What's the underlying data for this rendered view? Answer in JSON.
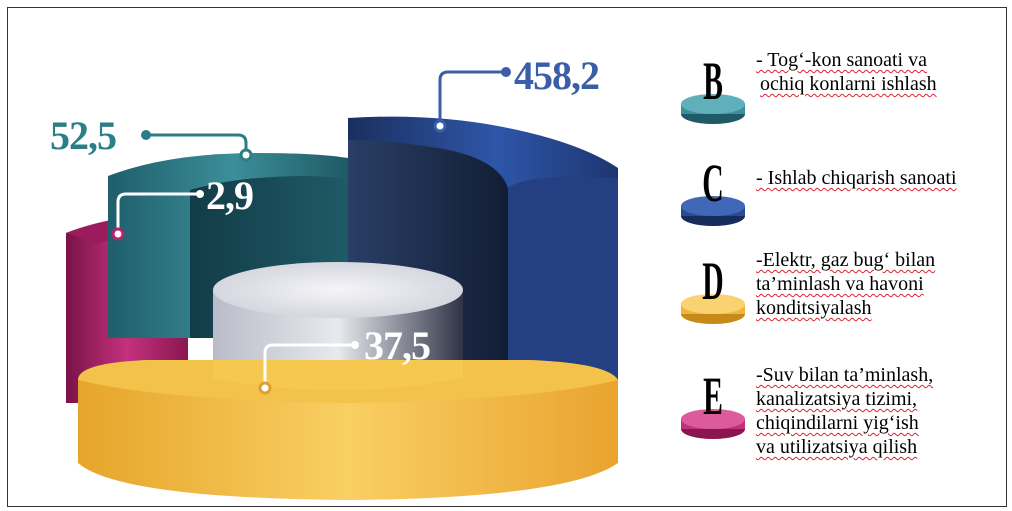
{
  "chart_data": {
    "type": "3d-ring",
    "values": [
      {
        "category": "B",
        "label": "52,5",
        "value": 52.5,
        "color": "#2e7e8a"
      },
      {
        "category": "C",
        "label": "458,2",
        "value": 458.2,
        "color": "#2e4f99"
      },
      {
        "category": "D",
        "label": "37,5",
        "value": 37.5,
        "color": "#f2b53b"
      },
      {
        "category": "E",
        "label": "2,9",
        "value": 2.9,
        "color": "#b3236e"
      }
    ],
    "cylinder_label": "37,5"
  },
  "legend": [
    {
      "letter": "B",
      "color": "#3d8f99",
      "lines": [
        "- Tog‘-kon sanoati va",
        "ochiq konlarni ishlash"
      ]
    },
    {
      "letter": "C",
      "color": "#2b4a94",
      "lines": [
        "- Ishlab chiqarish sanoati"
      ]
    },
    {
      "letter": "D",
      "color": "#f2b53b",
      "lines": [
        "-Elektr, gaz bug‘ bilan",
        "ta’minlash va havoni",
        "konditsiyalash"
      ]
    },
    {
      "letter": "E",
      "color": "#c2307a",
      "lines": [
        "-Suv bilan ta’minlash,",
        "kanalizatsiya tizimi,",
        "chiqindilarni yig‘ish",
        "va utilizatsiya qilish"
      ]
    }
  ]
}
